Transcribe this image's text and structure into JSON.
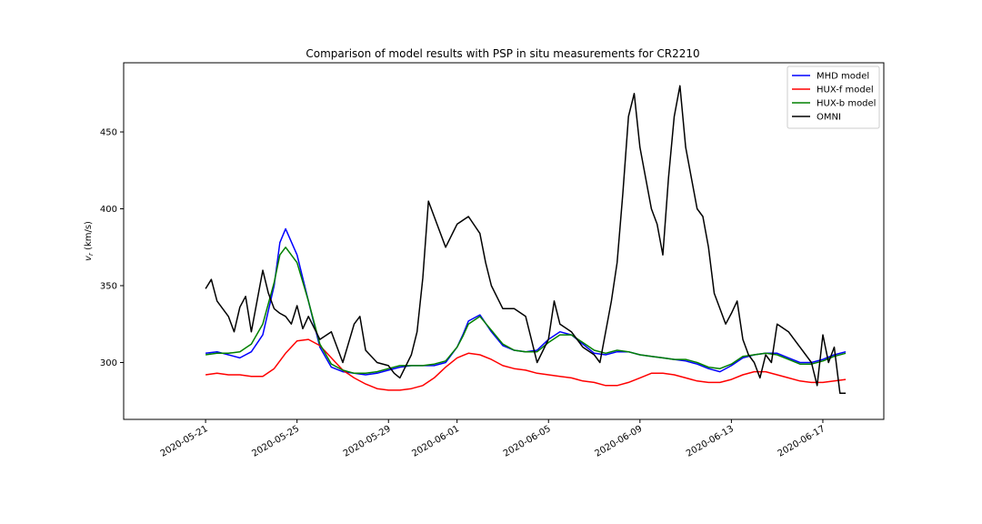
{
  "chart_data": {
    "type": "line",
    "title": "Comparison of model results with PSP in situ measurements for CR2210",
    "xlabel": "",
    "ylabel": "v_r (km/s)",
    "ylabel_parts": {
      "var": "v",
      "sub": "r",
      "unit": " (km/s)"
    },
    "xlim": [
      "2020-05-17T10:00",
      "2020-06-19T16:00"
    ],
    "ylim": [
      263,
      495
    ],
    "x_ticks": [
      "2020-05-21",
      "2020-05-25",
      "2020-05-29",
      "2020-06-01",
      "2020-06-05",
      "2020-06-09",
      "2020-06-13",
      "2020-06-17"
    ],
    "y_ticks": [
      300,
      350,
      400,
      450
    ],
    "grid": false,
    "legend_position": "top-right",
    "series": [
      {
        "name": "MHD model",
        "color": "#0000ff",
        "x": [
          "2020-05-21T00:00",
          "2020-05-21T12:00",
          "2020-05-22T00:00",
          "2020-05-22T12:00",
          "2020-05-23T00:00",
          "2020-05-23T12:00",
          "2020-05-24T00:00",
          "2020-05-24T06:00",
          "2020-05-24T12:00",
          "2020-05-25T00:00",
          "2020-05-25T12:00",
          "2020-05-26T00:00",
          "2020-05-26T12:00",
          "2020-05-27T00:00",
          "2020-05-27T12:00",
          "2020-05-28T00:00",
          "2020-05-28T12:00",
          "2020-05-29T00:00",
          "2020-05-29T12:00",
          "2020-05-30T00:00",
          "2020-05-30T12:00",
          "2020-05-31T00:00",
          "2020-05-31T12:00",
          "2020-06-01T00:00",
          "2020-06-01T06:00",
          "2020-06-01T12:00",
          "2020-06-02T00:00",
          "2020-06-02T12:00",
          "2020-06-03T00:00",
          "2020-06-03T12:00",
          "2020-06-04T00:00",
          "2020-06-04T12:00",
          "2020-06-05T00:00",
          "2020-06-05T12:00",
          "2020-06-06T00:00",
          "2020-06-06T12:00",
          "2020-06-07T00:00",
          "2020-06-07T12:00",
          "2020-06-08T00:00",
          "2020-06-08T12:00",
          "2020-06-09T00:00",
          "2020-06-09T12:00",
          "2020-06-10T00:00",
          "2020-06-10T12:00",
          "2020-06-11T00:00",
          "2020-06-11T12:00",
          "2020-06-12T00:00",
          "2020-06-12T12:00",
          "2020-06-13T00:00",
          "2020-06-13T12:00",
          "2020-06-14T00:00",
          "2020-06-14T12:00",
          "2020-06-15T00:00",
          "2020-06-15T12:00",
          "2020-06-16T00:00",
          "2020-06-16T12:00",
          "2020-06-17T00:00",
          "2020-06-17T12:00",
          "2020-06-18T00:00"
        ],
        "y": [
          306,
          307,
          305,
          303,
          307,
          318,
          350,
          378,
          387,
          370,
          340,
          310,
          297,
          294,
          293,
          292,
          293,
          295,
          297,
          298,
          298,
          298,
          300,
          310,
          318,
          327,
          331,
          320,
          311,
          308,
          307,
          308,
          315,
          320,
          318,
          312,
          306,
          305,
          307,
          307,
          305,
          304,
          303,
          302,
          301,
          299,
          296,
          294,
          298,
          303,
          305,
          306,
          306,
          303,
          300,
          300,
          302,
          305,
          307
        ]
      },
      {
        "name": "HUX-f model",
        "color": "#ff0000",
        "x": [
          "2020-05-21T00:00",
          "2020-05-21T12:00",
          "2020-05-22T00:00",
          "2020-05-22T12:00",
          "2020-05-23T00:00",
          "2020-05-23T12:00",
          "2020-05-24T00:00",
          "2020-05-24T12:00",
          "2020-05-25T00:00",
          "2020-05-25T12:00",
          "2020-05-26T00:00",
          "2020-05-26T12:00",
          "2020-05-27T00:00",
          "2020-05-27T12:00",
          "2020-05-28T00:00",
          "2020-05-28T12:00",
          "2020-05-29T00:00",
          "2020-05-29T12:00",
          "2020-05-30T00:00",
          "2020-05-30T12:00",
          "2020-05-31T00:00",
          "2020-05-31T12:00",
          "2020-06-01T00:00",
          "2020-06-01T12:00",
          "2020-06-02T00:00",
          "2020-06-02T12:00",
          "2020-06-03T00:00",
          "2020-06-03T12:00",
          "2020-06-04T00:00",
          "2020-06-04T12:00",
          "2020-06-05T00:00",
          "2020-06-05T12:00",
          "2020-06-06T00:00",
          "2020-06-06T12:00",
          "2020-06-07T00:00",
          "2020-06-07T12:00",
          "2020-06-08T00:00",
          "2020-06-08T12:00",
          "2020-06-09T00:00",
          "2020-06-09T12:00",
          "2020-06-10T00:00",
          "2020-06-10T12:00",
          "2020-06-11T00:00",
          "2020-06-11T12:00",
          "2020-06-12T00:00",
          "2020-06-12T12:00",
          "2020-06-13T00:00",
          "2020-06-13T12:00",
          "2020-06-14T00:00",
          "2020-06-14T12:00",
          "2020-06-15T00:00",
          "2020-06-15T12:00",
          "2020-06-16T00:00",
          "2020-06-16T12:00",
          "2020-06-17T00:00",
          "2020-06-17T12:00",
          "2020-06-18T00:00"
        ],
        "y": [
          292,
          293,
          292,
          292,
          291,
          291,
          296,
          306,
          314,
          315,
          311,
          303,
          295,
          290,
          286,
          283,
          282,
          282,
          283,
          285,
          290,
          297,
          303,
          306,
          305,
          302,
          298,
          296,
          295,
          293,
          292,
          291,
          290,
          288,
          287,
          285,
          285,
          287,
          290,
          293,
          293,
          292,
          290,
          288,
          287,
          287,
          289,
          292,
          294,
          294,
          292,
          290,
          288,
          287,
          287,
          288,
          289
        ]
      },
      {
        "name": "HUX-b model",
        "color": "#008000",
        "x": [
          "2020-05-21T00:00",
          "2020-05-21T12:00",
          "2020-05-22T00:00",
          "2020-05-22T12:00",
          "2020-05-23T00:00",
          "2020-05-23T12:00",
          "2020-05-24T00:00",
          "2020-05-24T06:00",
          "2020-05-24T12:00",
          "2020-05-25T00:00",
          "2020-05-25T12:00",
          "2020-05-26T00:00",
          "2020-05-26T12:00",
          "2020-05-27T00:00",
          "2020-05-27T12:00",
          "2020-05-28T00:00",
          "2020-05-28T12:00",
          "2020-05-29T00:00",
          "2020-05-29T12:00",
          "2020-05-30T00:00",
          "2020-05-30T12:00",
          "2020-05-31T00:00",
          "2020-05-31T12:00",
          "2020-06-01T00:00",
          "2020-06-01T06:00",
          "2020-06-01T12:00",
          "2020-06-02T00:00",
          "2020-06-02T12:00",
          "2020-06-03T00:00",
          "2020-06-03T12:00",
          "2020-06-04T00:00",
          "2020-06-04T12:00",
          "2020-06-05T00:00",
          "2020-06-05T12:00",
          "2020-06-06T00:00",
          "2020-06-06T12:00",
          "2020-06-07T00:00",
          "2020-06-07T12:00",
          "2020-06-08T00:00",
          "2020-06-08T12:00",
          "2020-06-09T00:00",
          "2020-06-09T12:00",
          "2020-06-10T00:00",
          "2020-06-10T12:00",
          "2020-06-11T00:00",
          "2020-06-11T12:00",
          "2020-06-12T00:00",
          "2020-06-12T12:00",
          "2020-06-13T00:00",
          "2020-06-13T12:00",
          "2020-06-14T00:00",
          "2020-06-14T12:00",
          "2020-06-15T00:00",
          "2020-06-15T12:00",
          "2020-06-16T00:00",
          "2020-06-16T12:00",
          "2020-06-17T00:00",
          "2020-06-17T12:00",
          "2020-06-18T00:00"
        ],
        "y": [
          305,
          306,
          306,
          307,
          312,
          325,
          352,
          370,
          375,
          365,
          340,
          312,
          299,
          295,
          293,
          293,
          294,
          296,
          298,
          298,
          298,
          299,
          301,
          310,
          317,
          325,
          330,
          321,
          312,
          308,
          307,
          307,
          313,
          318,
          318,
          313,
          308,
          306,
          308,
          307,
          305,
          304,
          303,
          302,
          302,
          300,
          297,
          296,
          299,
          304,
          305,
          306,
          305,
          302,
          299,
          299,
          301,
          304,
          306
        ]
      },
      {
        "name": "OMNI",
        "color": "#000000",
        "x": [
          "2020-05-21T00:00",
          "2020-05-21T06:00",
          "2020-05-21T12:00",
          "2020-05-22T00:00",
          "2020-05-22T06:00",
          "2020-05-22T12:00",
          "2020-05-22T18:00",
          "2020-05-23T00:00",
          "2020-05-23T06:00",
          "2020-05-23T12:00",
          "2020-05-23T18:00",
          "2020-05-24T00:00",
          "2020-05-24T06:00",
          "2020-05-24T12:00",
          "2020-05-24T18:00",
          "2020-05-25T00:00",
          "2020-05-25T06:00",
          "2020-05-25T12:00",
          "2020-05-26T00:00",
          "2020-05-26T12:00",
          "2020-05-27T00:00",
          "2020-05-27T12:00",
          "2020-05-27T18:00",
          "2020-05-28T00:00",
          "2020-05-28T12:00",
          "2020-05-29T00:00",
          "2020-05-29T06:00",
          "2020-05-29T12:00",
          "2020-05-30T00:00",
          "2020-05-30T06:00",
          "2020-05-30T12:00",
          "2020-05-30T18:00",
          "2020-05-31T00:00",
          "2020-05-31T12:00",
          "2020-06-01T00:00",
          "2020-06-01T12:00",
          "2020-06-02T00:00",
          "2020-06-02T06:00",
          "2020-06-02T12:00",
          "2020-06-03T00:00",
          "2020-06-03T12:00",
          "2020-06-04T00:00",
          "2020-06-04T06:00",
          "2020-06-04T12:00",
          "2020-06-05T00:00",
          "2020-06-05T06:00",
          "2020-06-05T12:00",
          "2020-06-06T00:00",
          "2020-06-06T12:00",
          "2020-06-07T00:00",
          "2020-06-07T06:00",
          "2020-06-07T12:00",
          "2020-06-07T18:00",
          "2020-06-08T00:00",
          "2020-06-08T06:00",
          "2020-06-08T12:00",
          "2020-06-08T18:00",
          "2020-06-09T00:00",
          "2020-06-09T06:00",
          "2020-06-09T12:00",
          "2020-06-09T18:00",
          "2020-06-10T00:00",
          "2020-06-10T06:00",
          "2020-06-10T12:00",
          "2020-06-10T18:00",
          "2020-06-11T00:00",
          "2020-06-11T06:00",
          "2020-06-11T12:00",
          "2020-06-11T18:00",
          "2020-06-12T00:00",
          "2020-06-12T06:00",
          "2020-06-12T12:00",
          "2020-06-12T18:00",
          "2020-06-13T00:00",
          "2020-06-13T06:00",
          "2020-06-13T12:00",
          "2020-06-13T18:00",
          "2020-06-14T00:00",
          "2020-06-14T06:00",
          "2020-06-14T12:00",
          "2020-06-14T18:00",
          "2020-06-15T00:00",
          "2020-06-15T12:00",
          "2020-06-16T00:00",
          "2020-06-16T06:00",
          "2020-06-16T12:00",
          "2020-06-16T18:00",
          "2020-06-17T00:00",
          "2020-06-17T06:00",
          "2020-06-17T12:00",
          "2020-06-17T18:00",
          "2020-06-18T00:00"
        ],
        "y": [
          348,
          354,
          340,
          330,
          320,
          336,
          343,
          320,
          340,
          360,
          345,
          335,
          332,
          330,
          325,
          337,
          322,
          330,
          315,
          320,
          300,
          325,
          330,
          308,
          300,
          298,
          293,
          290,
          305,
          320,
          355,
          405,
          395,
          375,
          390,
          395,
          384,
          365,
          350,
          335,
          335,
          330,
          315,
          300,
          315,
          340,
          325,
          320,
          310,
          305,
          300,
          320,
          340,
          365,
          410,
          460,
          475,
          440,
          420,
          400,
          390,
          370,
          420,
          460,
          480,
          440,
          420,
          400,
          395,
          375,
          345,
          335,
          325,
          332,
          340,
          315,
          305,
          300,
          290,
          305,
          300,
          325,
          320,
          310,
          305,
          300,
          285,
          318,
          300,
          310,
          280,
          280
        ]
      }
    ]
  }
}
